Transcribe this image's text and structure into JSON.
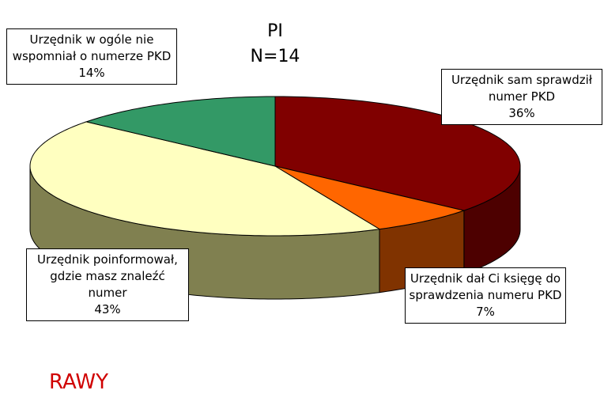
{
  "chart_data": {
    "type": "pie",
    "title": "PI",
    "subtitle": "N=14",
    "categories": [
      "Urzędnik sam sprawdził numer PKD",
      "Urzędnik dał Ci księgę do sprawdzenia numeru PKD",
      "Urzędnik poinformował, gdzie masz znaleźć numer",
      "Urzędnik w ogóle nie wspomniał o numerze PKD"
    ],
    "values": [
      36,
      7,
      43,
      14
    ],
    "value_labels": [
      "36%",
      "7%",
      "43%",
      "14%"
    ],
    "colors": [
      "#800000",
      "#ff6600",
      "#ffffc0",
      "#339966"
    ],
    "side_colors": [
      "#4d0000",
      "#803300",
      "#808050",
      "#1f5c3d"
    ],
    "annotation": "RAWY"
  }
}
